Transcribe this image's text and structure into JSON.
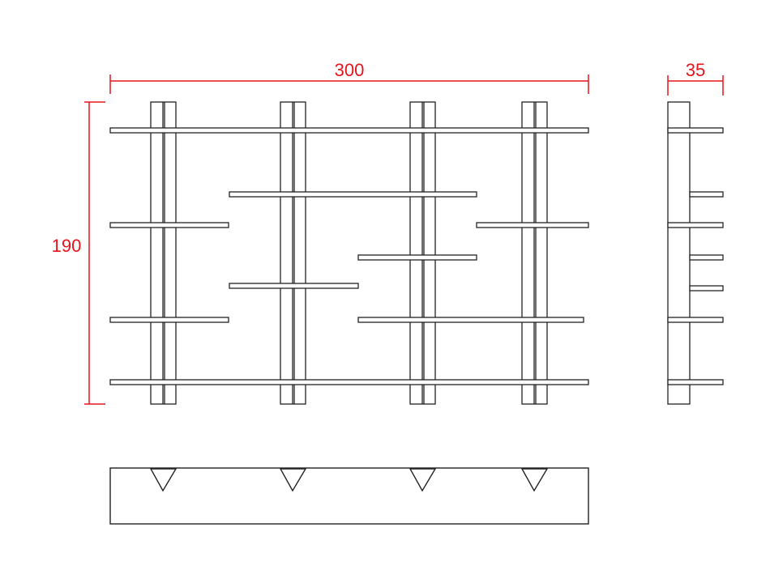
{
  "colors": {
    "dimension": "#e8141c",
    "line": "#222222",
    "background": "#ffffff"
  },
  "dimensions": {
    "width": "300",
    "height": "190",
    "depth": "35"
  },
  "views": [
    "front-elevation",
    "side-elevation",
    "plan-view"
  ]
}
